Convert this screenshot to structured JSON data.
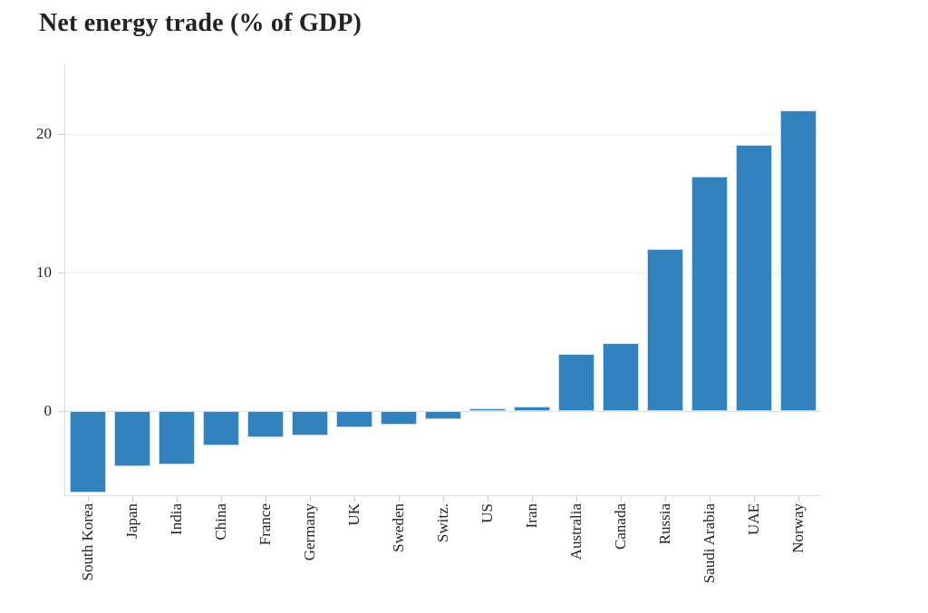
{
  "title": "Net energy trade (% of GDP)",
  "chart_data": {
    "type": "bar",
    "title": "Net energy trade (% of GDP)",
    "xlabel": "",
    "ylabel": "",
    "categories": [
      "South Korea",
      "Japan",
      "India",
      "China",
      "France",
      "Germany",
      "UK",
      "Sweden",
      "Switz.",
      "US",
      "Iran",
      "Australia",
      "Canada",
      "Russia",
      "Saudi Arabia",
      "UAE",
      "Norway"
    ],
    "values": [
      -5.9,
      -4.0,
      -3.9,
      -2.5,
      -1.9,
      -1.8,
      -1.2,
      -1.0,
      -0.6,
      0.2,
      0.3,
      4.1,
      4.9,
      11.7,
      16.9,
      19.2,
      21.7
    ],
    "ylim": [
      -6.1,
      25.1
    ],
    "yticks": [
      0,
      10,
      20
    ],
    "grid": true,
    "legend": false,
    "x_tick_rotation": 90,
    "colors": {
      "bar": "#3182bd",
      "bar_border": "#c4dcef",
      "gridline": "#eeeeee",
      "zero_line": "#dedede",
      "axis": "#dddddd",
      "tick": "#cccccc",
      "text": "#222222",
      "background": "#ffffff"
    }
  }
}
